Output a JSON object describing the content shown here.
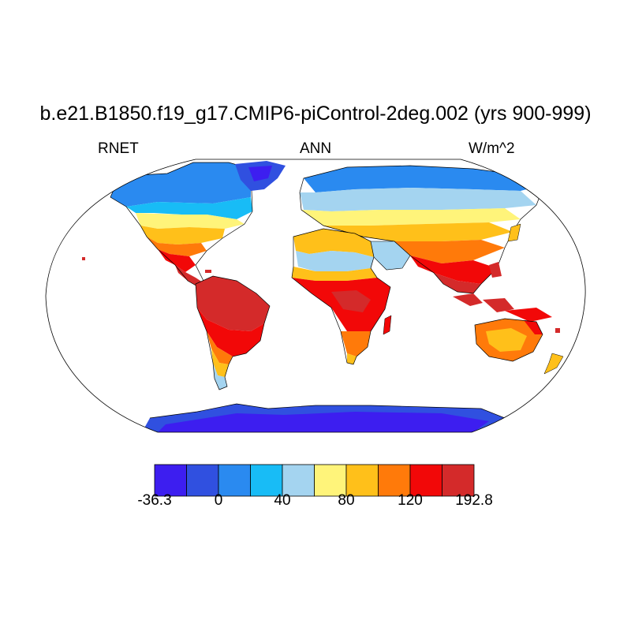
{
  "title": "b.e21.B1850.f19_g17.CMIP6-piControl-2deg.002 (yrs 900-999)",
  "subtitles": {
    "left": "RNET",
    "center": "ANN",
    "right": "W/m^2"
  },
  "colorbar": {
    "colors": [
      "#3d1ef0",
      "#3050e0",
      "#2a8af0",
      "#18bcf6",
      "#a4d4f0",
      "#fff47a",
      "#ffc01a",
      "#ff7a0a",
      "#f20808",
      "#d42a2a"
    ],
    "tick_labels": [
      "-36.3",
      "0",
      "40",
      "80",
      "120",
      "192.8"
    ]
  }
}
